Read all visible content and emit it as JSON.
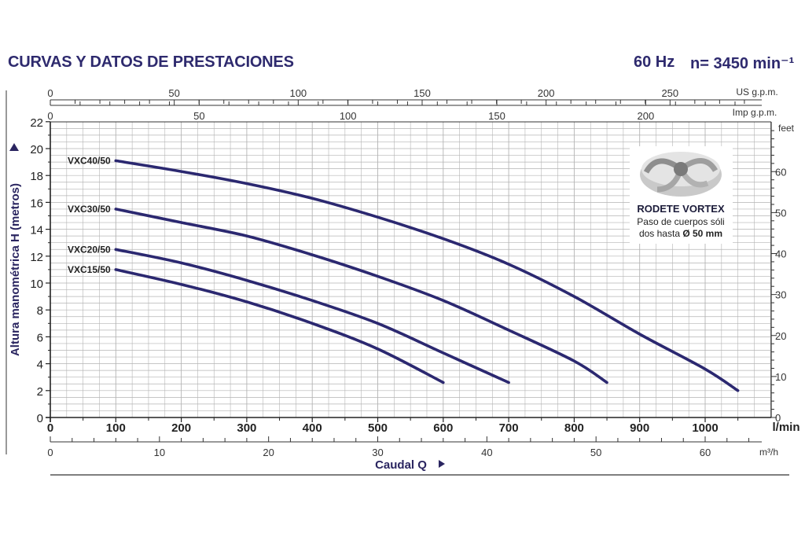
{
  "header": {
    "title": "CURVAS Y DATOS DE PRESTACIONES",
    "frequency": "60 Hz",
    "speed": "n= 3450 min⁻¹"
  },
  "colors": {
    "curve": "#2b2870",
    "grid": "#b4b4b4",
    "text": "#2a2560"
  },
  "inset": {
    "icon": "vortex-impeller-icon",
    "title": "RODETE VORTEX",
    "line1": "Paso de cuerpos sóli",
    "line2_prefix": "dos hasta ",
    "line2_bold": "Ø 50 mm"
  },
  "chart_data": {
    "type": "line",
    "x": {
      "label": "Caudal Q",
      "unit": "l/min",
      "range": [
        0,
        1060
      ],
      "ticks": [
        0,
        100,
        200,
        300,
        400,
        500,
        600,
        700,
        800,
        900,
        1000
      ]
    },
    "y": {
      "label": "Altura manométrica H (metros)",
      "range": [
        0,
        22
      ],
      "ticks": [
        0,
        2,
        4,
        6,
        8,
        10,
        12,
        14,
        16,
        18,
        20,
        22
      ]
    },
    "secondary_axes": {
      "us_gpm": {
        "unit": "US g.p.m.",
        "ticks": [
          0,
          50,
          100,
          150,
          200,
          250
        ]
      },
      "imp_gpm": {
        "unit": "Imp g.p.m.",
        "ticks": [
          0,
          50,
          100,
          150,
          200
        ]
      },
      "m3h": {
        "unit": "m³/h",
        "ticks": [
          0,
          10,
          20,
          30,
          40,
          50,
          60
        ]
      },
      "feet": {
        "unit": "feet",
        "ticks": [
          0,
          10,
          20,
          30,
          40,
          50,
          60
        ]
      }
    },
    "grid": true,
    "series": [
      {
        "name": "VXC40/50",
        "points": [
          [
            100,
            19.1
          ],
          [
            200,
            18.3
          ],
          [
            300,
            17.4
          ],
          [
            400,
            16.3
          ],
          [
            500,
            14.9
          ],
          [
            600,
            13.3
          ],
          [
            700,
            11.4
          ],
          [
            800,
            9.0
          ],
          [
            900,
            6.2
          ],
          [
            1000,
            3.6
          ],
          [
            1050,
            2.0
          ]
        ]
      },
      {
        "name": "VXC30/50",
        "points": [
          [
            100,
            15.5
          ],
          [
            200,
            14.5
          ],
          [
            300,
            13.5
          ],
          [
            400,
            12.1
          ],
          [
            500,
            10.5
          ],
          [
            600,
            8.7
          ],
          [
            700,
            6.5
          ],
          [
            800,
            4.2
          ],
          [
            850,
            2.6
          ]
        ]
      },
      {
        "name": "VXC20/50",
        "points": [
          [
            100,
            12.5
          ],
          [
            200,
            11.5
          ],
          [
            300,
            10.2
          ],
          [
            400,
            8.7
          ],
          [
            500,
            7.0
          ],
          [
            600,
            4.8
          ],
          [
            700,
            2.6
          ]
        ]
      },
      {
        "name": "VXC15/50",
        "points": [
          [
            100,
            11.0
          ],
          [
            200,
            9.9
          ],
          [
            300,
            8.6
          ],
          [
            400,
            7.0
          ],
          [
            500,
            5.1
          ],
          [
            600,
            2.6
          ]
        ]
      }
    ]
  }
}
